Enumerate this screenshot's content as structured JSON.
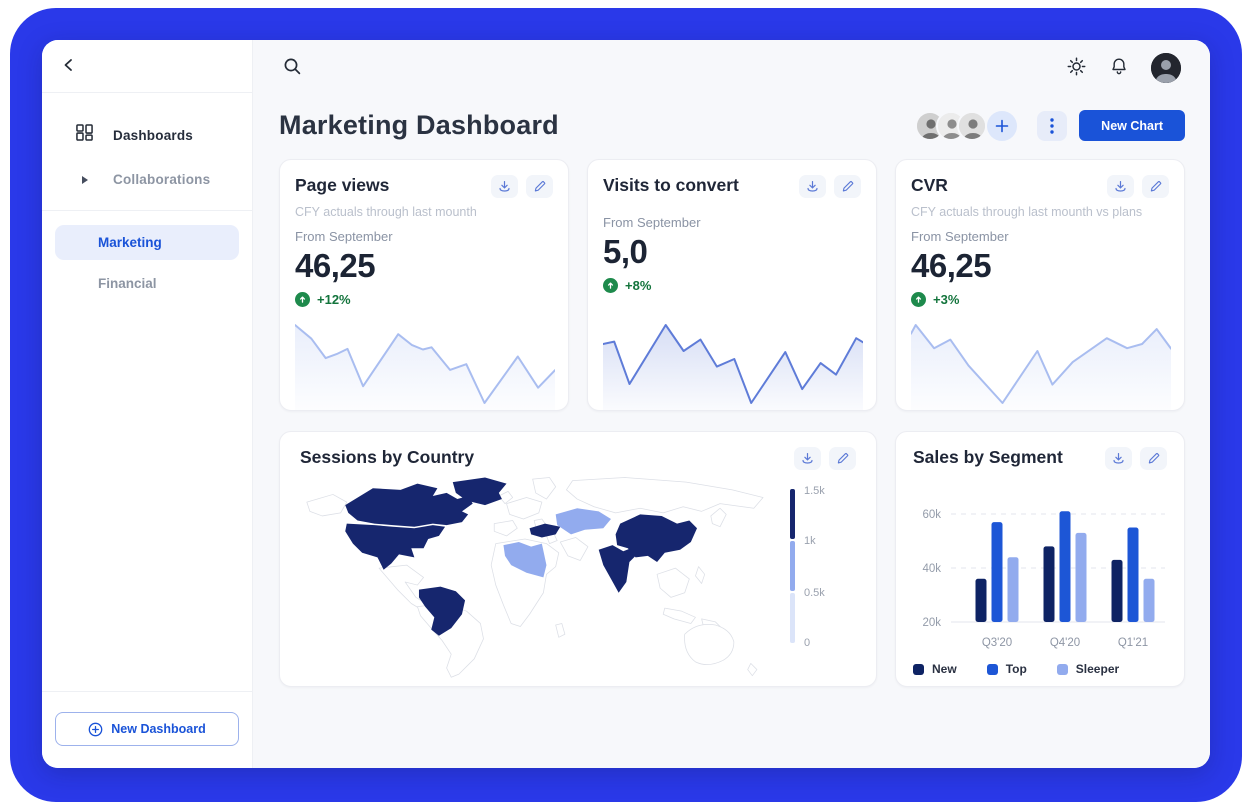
{
  "colors": {
    "frame_blue": "#2a39e9",
    "accent": "#1a53d8",
    "navy": "#16266e",
    "bright_blue": "#1d56d6",
    "periwinkle": "#92abee",
    "light_level": "#dbe4f9",
    "green": "#1e8a4c"
  },
  "sidebar": {
    "items": [
      {
        "label": "Dashboards",
        "icon": "dashboards-grid-icon"
      },
      {
        "label": "Collaborations",
        "icon": "triangle-right-icon"
      }
    ],
    "dashboards": [
      {
        "label": "Marketing",
        "active": true
      },
      {
        "label": "Financial",
        "active": false
      }
    ],
    "new_dashboard_label": "New Dashboard"
  },
  "header": {
    "title": "Marketing Dashboard",
    "new_chart_label": "New Chart",
    "collaborator_avatars": 3
  },
  "stat_cards": [
    {
      "title": "Page views",
      "subtitle": "CFY actuals through last mounth",
      "period": "From September",
      "value": "46,25",
      "delta": "+12%"
    },
    {
      "title": "Visits to convert",
      "subtitle": "",
      "period": "From September",
      "value": "5,0",
      "delta": "+8%"
    },
    {
      "title": "CVR",
      "subtitle": "CFY actuals through last mounth vs plans",
      "period": "From September",
      "value": "46,25",
      "delta": "+3%"
    }
  ],
  "chart_data": [
    {
      "type": "line",
      "role": "sparkline",
      "card": "Page views",
      "color": "#a9bdf0",
      "points_pct": [
        [
          0,
          0
        ],
        [
          6.3,
          17.6
        ],
        [
          11.8,
          42.4
        ],
        [
          16,
          37.3
        ],
        [
          20.2,
          30.6
        ],
        [
          26.2,
          78.4
        ],
        [
          39.7,
          11.8
        ],
        [
          44.9,
          25.5
        ],
        [
          49.2,
          31.4
        ],
        [
          52.5,
          28.6
        ],
        [
          59.6,
          57.6
        ],
        [
          65.9,
          50.2
        ],
        [
          72.9,
          100
        ],
        [
          85.7,
          40.4
        ],
        [
          93.5,
          80.4
        ],
        [
          100,
          58
        ]
      ]
    },
    {
      "type": "line",
      "role": "sparkline",
      "card": "Visits to convert",
      "color": "#5f7cd8",
      "points_pct": [
        [
          0,
          24.4
        ],
        [
          4.3,
          21.3
        ],
        [
          10.2,
          75.6
        ],
        [
          24.1,
          0
        ],
        [
          31,
          33.3
        ],
        [
          37.5,
          18.7
        ],
        [
          43.8,
          53.3
        ],
        [
          50.5,
          43.6
        ],
        [
          57,
          100
        ],
        [
          70.1,
          34.7
        ],
        [
          76.6,
          82.2
        ],
        [
          83.7,
          48.9
        ],
        [
          89.6,
          63.6
        ],
        [
          97.4,
          16.9
        ],
        [
          100,
          22.2
        ]
      ]
    },
    {
      "type": "line",
      "role": "sparkline",
      "card": "CVR",
      "color": "#a9bdf0",
      "points_pct": [
        [
          0,
          11.1
        ],
        [
          1.8,
          0
        ],
        [
          8.9,
          29.8
        ],
        [
          15.1,
          18.7
        ],
        [
          22.1,
          52
        ],
        [
          35.2,
          100
        ],
        [
          48.6,
          33.3
        ],
        [
          54.4,
          76.4
        ],
        [
          62.2,
          47.6
        ],
        [
          75.3,
          16.9
        ],
        [
          83.1,
          29.8
        ],
        [
          88.9,
          24.4
        ],
        [
          94.5,
          5.3
        ],
        [
          100,
          30.2
        ]
      ]
    },
    {
      "type": "choropleth-map",
      "title": "Sessions by Country",
      "unit": "sessions",
      "legend": {
        "ticks": [
          "1.5k",
          "1k",
          "0.5k",
          "0"
        ],
        "levels": [
          {
            "name": "high",
            "range": "1k-1.5k",
            "color": "#16266e"
          },
          {
            "name": "medium",
            "range": "0.5k-1k",
            "color": "#92abee"
          },
          {
            "name": "low",
            "range": "0-0.5k",
            "color": "#dbe4f9"
          }
        ]
      },
      "countries": [
        {
          "id": "united-states",
          "name": "United States",
          "level": "high"
        },
        {
          "id": "canada",
          "name": "Canada",
          "level": "high"
        },
        {
          "id": "greenland",
          "name": "Greenland",
          "level": "high"
        },
        {
          "id": "brazil",
          "name": "Brazil",
          "level": "high"
        },
        {
          "id": "turkey",
          "name": "Turkey",
          "level": "high"
        },
        {
          "id": "india",
          "name": "India",
          "level": "high"
        },
        {
          "id": "china",
          "name": "China",
          "level": "high"
        },
        {
          "id": "kazakhstan",
          "name": "Kazakhstan",
          "level": "medium"
        },
        {
          "id": "libya",
          "name": "Libya",
          "level": "medium"
        }
      ]
    },
    {
      "type": "bar",
      "title": "Sales by Segment",
      "categories": [
        "Q3'20",
        "Q4'20",
        "Q1'21"
      ],
      "series": [
        {
          "name": "New",
          "color": "#0e2364",
          "values": [
            36,
            48,
            43
          ]
        },
        {
          "name": "Top",
          "color": "#1d56d6",
          "values": [
            57,
            61,
            55
          ]
        },
        {
          "name": "Sleeper",
          "color": "#92abee",
          "values": [
            44,
            53,
            36
          ]
        }
      ],
      "unit": "k",
      "ylim": [
        20,
        65
      ],
      "yticks": [
        {
          "v": 20,
          "label": "20k"
        },
        {
          "v": 40,
          "label": "40k"
        },
        {
          "v": 60,
          "label": "60k"
        }
      ],
      "grid": "dashed horizontal"
    }
  ]
}
